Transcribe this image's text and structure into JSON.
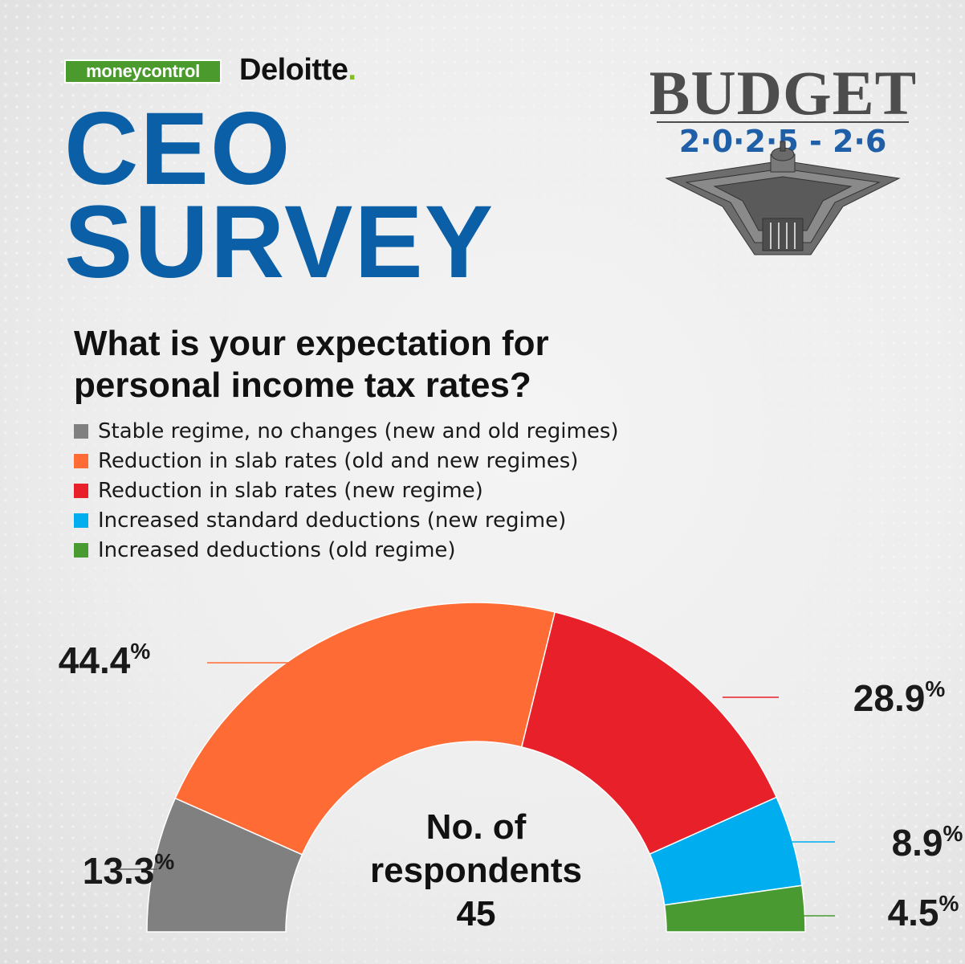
{
  "brand": {
    "moneycontrol": "moneycontrol",
    "deloitte": "Deloitte",
    "deloitte_dot": "."
  },
  "title": {
    "line1": "CEO",
    "line2": "SURVEY"
  },
  "budget_badge": {
    "word": "BUDGET",
    "years": "2·0·2·5 - 2·6"
  },
  "question": "What is your expectation for personal income tax rates?",
  "center_label": {
    "line1": "No. of",
    "line2": "respondents",
    "count": "45"
  },
  "colors": {
    "title_blue": "#0a5fa6",
    "gray": "#808080",
    "orange": "#ff6b35",
    "red": "#e8202a",
    "blue": "#00aeef",
    "green": "#4a9a32"
  },
  "chart_data": {
    "type": "pie",
    "variant": "semicircle-donut",
    "legend_placement": "top-left",
    "series": [
      {
        "name": "Stable regime, no changes (new and old regimes)",
        "value": 13.3,
        "label": "13.3",
        "color": "#808080"
      },
      {
        "name": "Reduction in slab rates (old and new regimes)",
        "value": 44.4,
        "label": "44.4",
        "color": "#ff6b35"
      },
      {
        "name": "Reduction in slab rates (new regime)",
        "value": 28.9,
        "label": "28.9",
        "color": "#e8202a"
      },
      {
        "name": "Increased standard deductions (new regime)",
        "value": 8.9,
        "label": "8.9",
        "color": "#00aeef"
      },
      {
        "name": "Increased deductions (old regime)",
        "value": 4.5,
        "label": "4.5",
        "color": "#4a9a32"
      }
    ],
    "unit": "%"
  }
}
